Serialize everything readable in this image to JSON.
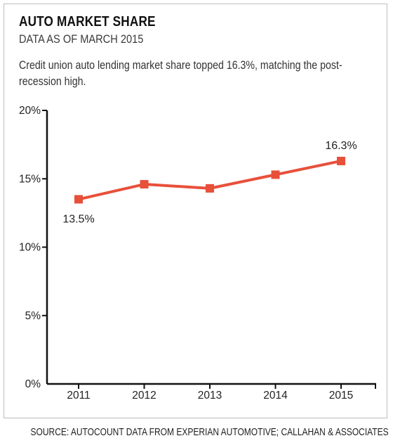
{
  "header": {
    "title": "AUTO MARKET SHARE",
    "subtitle": "DATA AS OF MARCH 2015",
    "description": "Credit union auto lending market share topped 16.3%, matching the post-recession high."
  },
  "footer": {
    "source": "SOURCE: AUTOCOUNT DATA FROM EXPERIAN AUTOMOTIVE; CALLAHAN & ASSOCIATES"
  },
  "colors": {
    "series": "#e8503a",
    "axis": "#111111",
    "text": "#222222"
  },
  "chart_data": {
    "type": "line",
    "categories": [
      "2011",
      "2012",
      "2013",
      "2014",
      "2015"
    ],
    "series": [
      {
        "values": [
          13.5,
          14.6,
          14.3,
          15.3,
          16.3
        ]
      }
    ],
    "ylim": [
      0,
      20
    ],
    "yticks": [
      0,
      5,
      10,
      15,
      20
    ],
    "ytick_labels": [
      "0%",
      "5%",
      "10%",
      "15%",
      "20%"
    ],
    "annotations": [
      {
        "category": "2011",
        "text": "13.5%",
        "placement": "below"
      },
      {
        "category": "2015",
        "text": "16.3%",
        "placement": "above"
      }
    ],
    "grid": false,
    "marker": "square"
  }
}
